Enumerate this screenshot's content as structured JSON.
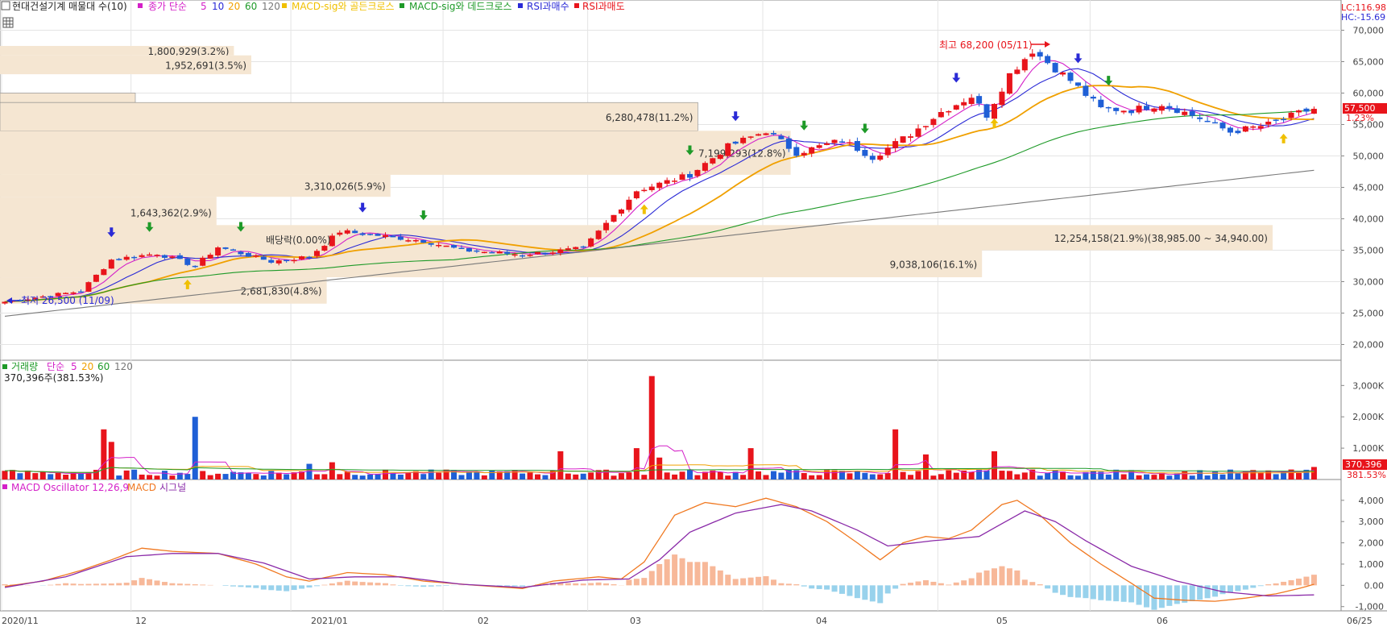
{
  "main_panel": {
    "legend": {
      "title": "현대건설기계 매물대 수(10)",
      "sma_label": "종가 단순",
      "sma_periods": [
        "5",
        "10",
        "20",
        "60",
        "120"
      ],
      "golden_cross": "MACD-sig와 골든크로스",
      "dead_cross": "MACD-sig와 데드크로스",
      "rsi_buy": "RSI과매수",
      "rsi_sell": "RSI과매도"
    },
    "lc_label": "LC:116.98",
    "hc_label": "HC:-15.69",
    "high_annotation": "최고 68,200 (05/11)",
    "low_annotation": "최저 26,500 (11/09)",
    "dividend_label": "배당락(0.00%)",
    "price_tag": "57,500",
    "change_tag": "1.23%",
    "y_ticks": [
      "70,000",
      "65,000",
      "60,000",
      "55,000",
      "50,000",
      "45,000",
      "40,000",
      "35,000",
      "30,000",
      "25,000",
      "20,000"
    ]
  },
  "volume_panel": {
    "legend_label": "거래량",
    "legend_sma": "단순",
    "sma_periods": [
      "5",
      "20",
      "60",
      "120"
    ],
    "current_label": "370,396주(381.53%)",
    "value_tag": "370,396",
    "pct_tag": "381.53%",
    "y_ticks": [
      "3,000K",
      "2,000K",
      "1,000K"
    ]
  },
  "macd_panel": {
    "legend_osc": "MACD Oscillator 12,26,9",
    "legend_macd": "MACD",
    "legend_signal": "시그널",
    "y_ticks": [
      "4,000",
      "3,000",
      "2,000",
      "1,000",
      "0.00",
      "-1,000"
    ]
  },
  "x_axis": {
    "labels": [
      "2020/11",
      "12",
      "2021/01",
      "02",
      "03",
      "04",
      "05",
      "06",
      "06/25"
    ]
  },
  "colors": {
    "up": "#e8141b",
    "down": "#1f5fd6",
    "sma5": "#d420c8",
    "sma10": "#2a2ad6",
    "sma20": "#f0a000",
    "sma60": "#1e9a28",
    "sma120": "#7a7a7a",
    "profile": "#f5e6d2",
    "macd": "#f07820",
    "signal": "#8a2aa8",
    "osc_pos": "#f7b899",
    "osc_neg": "#98d2ec"
  },
  "chart_data": [
    {
      "type": "candlestick",
      "title": "현대건설기계 매물대 수(10)",
      "x_range": [
        "2020/11",
        "06/25"
      ],
      "ylim": [
        17500,
        72500
      ],
      "close_anchors": [
        [
          0,
          26800
        ],
        [
          10,
          28500
        ],
        [
          14,
          33500
        ],
        [
          20,
          34500
        ],
        [
          25,
          32500
        ],
        [
          28,
          35500
        ],
        [
          35,
          33200
        ],
        [
          40,
          34000
        ],
        [
          44,
          38000
        ],
        [
          48,
          37500
        ],
        [
          55,
          36500
        ],
        [
          60,
          35000
        ],
        [
          68,
          34300
        ],
        [
          76,
          35300
        ],
        [
          83,
          44500
        ],
        [
          90,
          47000
        ],
        [
          95,
          51500
        ],
        [
          100,
          54000
        ],
        [
          104,
          50500
        ],
        [
          110,
          52500
        ],
        [
          114,
          49800
        ],
        [
          119,
          53500
        ],
        [
          123,
          57000
        ],
        [
          127,
          59500
        ],
        [
          129,
          56500
        ],
        [
          132,
          63000
        ],
        [
          135,
          66800
        ],
        [
          140,
          62000
        ],
        [
          144,
          57500
        ],
        [
          148,
          57300
        ],
        [
          152,
          58300
        ],
        [
          157,
          56000
        ],
        [
          161,
          53800
        ],
        [
          166,
          55000
        ],
        [
          170,
          56800
        ],
        [
          172,
          57500
        ]
      ],
      "volume_profile": [
        {
          "label": "1,800,929(3.2%)",
          "low": 66000,
          "high": 67500
        },
        {
          "label": "1,952,691(3.5%)",
          "low": 63000,
          "high": 66000
        },
        {
          "label": "",
          "low": 58500,
          "high": 60000
        },
        {
          "label": "6,280,478(11.2%)",
          "low": 54000,
          "high": 58500
        },
        {
          "label": "7,199,293(12.8%)",
          "low": 47000,
          "high": 54000
        },
        {
          "label": "3,310,026(5.9%)",
          "low": 43500,
          "high": 47000
        },
        {
          "label": "1,643,362(2.9%)",
          "low": 38500,
          "high": 43500
        },
        {
          "label": "12,254,158(21.9%)(38,985.00 ~ 34,940.00)",
          "low": 35000,
          "high": 39000
        },
        {
          "label": "9,038,106(16.1%)",
          "low": 30700,
          "high": 35000
        },
        {
          "label": "2,681,830(4.8%)",
          "low": 26500,
          "high": 30700
        }
      ]
    },
    {
      "type": "bar",
      "title": "거래량",
      "ylim": [
        0,
        3600
      ],
      "unit": "K",
      "spikes": [
        [
          13,
          1600
        ],
        [
          14,
          1200
        ],
        [
          25,
          2000
        ],
        [
          40,
          500
        ],
        [
          43,
          550
        ],
        [
          73,
          900
        ],
        [
          83,
          1000
        ],
        [
          85,
          3300
        ],
        [
          86,
          700
        ],
        [
          98,
          1000
        ],
        [
          117,
          1600
        ],
        [
          121,
          800
        ],
        [
          130,
          900
        ],
        [
          172,
          400
        ]
      ]
    },
    {
      "type": "line",
      "title": "MACD Oscillator 12,26,9",
      "ylim": [
        -1200,
        4600
      ],
      "macd_anchors": [
        [
          0,
          -50
        ],
        [
          5,
          200
        ],
        [
          10,
          700
        ],
        [
          14,
          1200
        ],
        [
          18,
          1750
        ],
        [
          22,
          1600
        ],
        [
          28,
          1500
        ],
        [
          33,
          1000
        ],
        [
          37,
          400
        ],
        [
          40,
          200
        ],
        [
          45,
          600
        ],
        [
          50,
          500
        ],
        [
          55,
          200
        ],
        [
          62,
          0
        ],
        [
          68,
          -150
        ],
        [
          72,
          200
        ],
        [
          78,
          400
        ],
        [
          81,
          300
        ],
        [
          84,
          1100
        ],
        [
          88,
          3300
        ],
        [
          92,
          3900
        ],
        [
          96,
          3700
        ],
        [
          100,
          4100
        ],
        [
          104,
          3700
        ],
        [
          108,
          3000
        ],
        [
          112,
          2000
        ],
        [
          115,
          1200
        ],
        [
          118,
          2000
        ],
        [
          121,
          2300
        ],
        [
          124,
          2200
        ],
        [
          127,
          2600
        ],
        [
          131,
          3800
        ],
        [
          133,
          4000
        ],
        [
          136,
          3300
        ],
        [
          140,
          2000
        ],
        [
          144,
          1000
        ],
        [
          148,
          100
        ],
        [
          151,
          -600
        ],
        [
          155,
          -700
        ],
        [
          159,
          -750
        ],
        [
          163,
          -600
        ],
        [
          167,
          -400
        ],
        [
          170,
          -150
        ],
        [
          172,
          50
        ]
      ],
      "signal_anchors": [
        [
          0,
          -100
        ],
        [
          8,
          400
        ],
        [
          16,
          1350
        ],
        [
          22,
          1500
        ],
        [
          28,
          1500
        ],
        [
          34,
          1050
        ],
        [
          40,
          300
        ],
        [
          46,
          400
        ],
        [
          52,
          400
        ],
        [
          60,
          50
        ],
        [
          68,
          -100
        ],
        [
          76,
          250
        ],
        [
          82,
          300
        ],
        [
          86,
          1200
        ],
        [
          90,
          2500
        ],
        [
          96,
          3400
        ],
        [
          102,
          3800
        ],
        [
          106,
          3500
        ],
        [
          112,
          2600
        ],
        [
          116,
          1850
        ],
        [
          122,
          2100
        ],
        [
          128,
          2300
        ],
        [
          134,
          3500
        ],
        [
          138,
          3000
        ],
        [
          142,
          2100
        ],
        [
          148,
          900
        ],
        [
          154,
          200
        ],
        [
          160,
          -300
        ],
        [
          166,
          -500
        ],
        [
          172,
          -450
        ]
      ]
    }
  ]
}
